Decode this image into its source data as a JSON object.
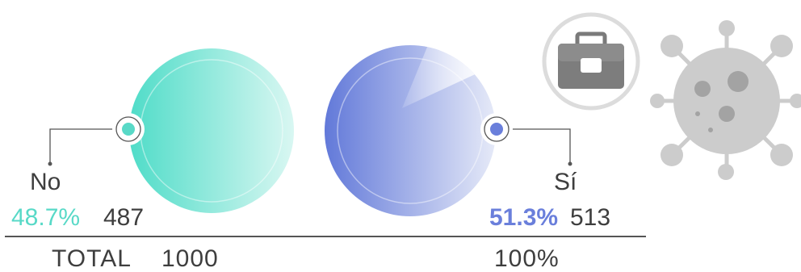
{
  "chart_data": {
    "type": "pie",
    "title": "",
    "categories": [
      "No",
      "Sí"
    ],
    "values": [
      487,
      513
    ],
    "percent_labels": [
      "48.7%",
      "51.3%"
    ],
    "count_labels": [
      "487",
      "513"
    ],
    "total_label": "TOTAL",
    "total_value": "1000",
    "total_percent": "100%",
    "colors": {
      "no": "#58d9c7",
      "si": "#6a7fdb",
      "line": "#555555",
      "icon_gray": "#cccccc"
    }
  },
  "icons": {
    "briefcase": "briefcase-icon",
    "virus": "virus-icon"
  }
}
